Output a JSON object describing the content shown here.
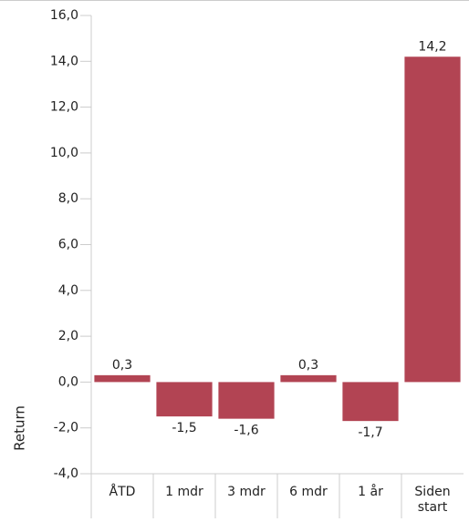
{
  "chart_data": {
    "type": "bar",
    "categories": [
      "ÅTD",
      "1 mdr",
      "3 mdr",
      "6 mdr",
      "1 år",
      "Siden start"
    ],
    "values": [
      0.3,
      -1.5,
      -1.6,
      0.3,
      -1.7,
      14.2
    ],
    "value_labels": [
      "0,3",
      "-1,5",
      "-1,6",
      "0,3",
      "-1,7",
      "14,2"
    ],
    "color": "#b24453",
    "ylabel": "Return",
    "ylim": [
      -4,
      16
    ],
    "yticks": [
      {
        "value": -4,
        "label": "-4,0"
      },
      {
        "value": -2,
        "label": "-2,0"
      },
      {
        "value": 0,
        "label": "0,0"
      },
      {
        "value": 2,
        "label": "2,0"
      },
      {
        "value": 4,
        "label": "4,0"
      },
      {
        "value": 6,
        "label": "6,0"
      },
      {
        "value": 8,
        "label": "8,0"
      },
      {
        "value": 10,
        "label": "10,0"
      },
      {
        "value": 12,
        "label": "12,0"
      },
      {
        "value": 14,
        "label": "14,0"
      },
      {
        "value": 16,
        "label": "16,0"
      }
    ]
  }
}
